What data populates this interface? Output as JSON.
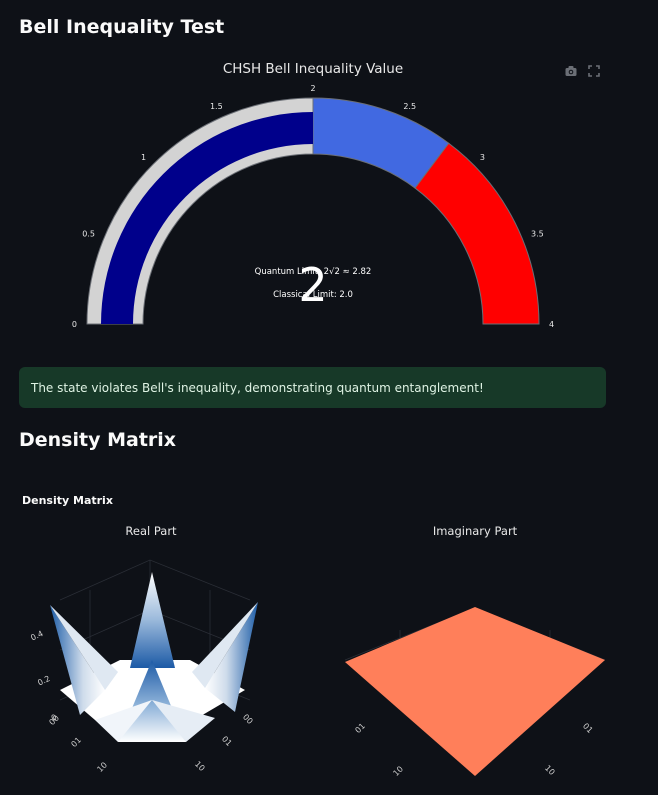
{
  "page": {
    "title": "Bell Inequality Test",
    "density_section_title": "Density Matrix"
  },
  "modebar": {
    "icons": [
      "camera-icon",
      "fullscreen-icon"
    ]
  },
  "gauge": {
    "title": "CHSH Bell Inequality Value",
    "value": 2,
    "value_text": "2",
    "range": [
      0,
      4
    ],
    "ticks": [
      "0",
      "0.5",
      "1",
      "1.5",
      "2",
      "2.5",
      "3",
      "3.5",
      "4"
    ],
    "steps": [
      {
        "range": [
          0,
          2
        ],
        "color": "#d3d3d3"
      },
      {
        "range": [
          2,
          2.82
        ],
        "color": "#4169e1"
      },
      {
        "range": [
          2.82,
          4
        ],
        "color": "#ff0000"
      }
    ],
    "bar_color": "#00008b",
    "quantum_limit_label": "Quantum Limit: 2√2 ≈ 2.82",
    "classical_limit_label": "Classical Limit: 2.0"
  },
  "alert": {
    "text": "The state violates Bell's inequality, demonstrating quantum entanglement!"
  },
  "density": {
    "subtitle": "Density Matrix",
    "real": {
      "title": "Real Part",
      "z_ticks": [
        "0",
        "0.2",
        "0.4"
      ],
      "axis_labels": [
        "00",
        "01",
        "10",
        "00",
        "01",
        "10"
      ]
    },
    "imag": {
      "title": "Imaginary Part",
      "surface_color": "#ff7f5a",
      "axis_labels": [
        "01",
        "10",
        "01",
        "10"
      ]
    }
  }
}
